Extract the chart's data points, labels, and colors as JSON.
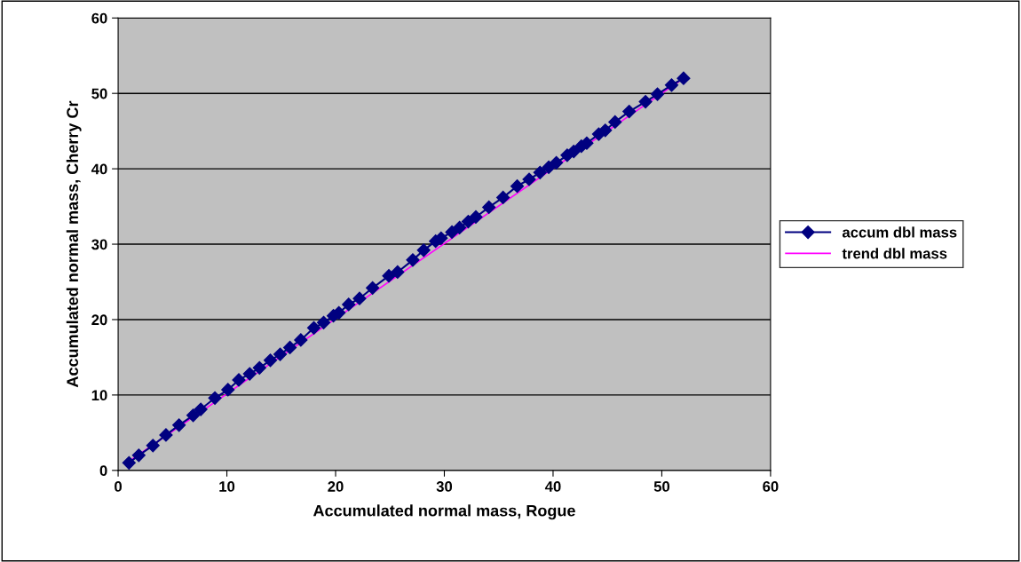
{
  "chart_data": {
    "type": "line",
    "xlabel": "Accumulated normal mass, Rogue",
    "ylabel": "Accumulated normal mass, Cherry Cr",
    "xlim": [
      0,
      60
    ],
    "ylim": [
      0,
      60
    ],
    "xticks": [
      0,
      10,
      20,
      30,
      40,
      50,
      60
    ],
    "yticks": [
      0,
      10,
      20,
      30,
      40,
      50,
      60
    ],
    "grid": "y",
    "legend": "right",
    "series": [
      {
        "name": "accum dbl mass",
        "color": "#000080",
        "marker": "diamond",
        "x": [
          1,
          1.9,
          3.2,
          4.4,
          5.6,
          6.9,
          7.6,
          8.9,
          10.1,
          11.1,
          12.1,
          13,
          14,
          14.9,
          15.8,
          16.8,
          18,
          18.9,
          19.8,
          20.3,
          21.2,
          22.2,
          23.4,
          24.9,
          25.7,
          27.1,
          28.1,
          29.2,
          29.7,
          30.7,
          31.4,
          32.2,
          32.9,
          34.1,
          35.4,
          36.7,
          37.8,
          38.8,
          39.6,
          40.3,
          41.3,
          41.9,
          42.6,
          43.1,
          44.2,
          44.8,
          45.7,
          47,
          48.5,
          49.6,
          50.9,
          52
        ],
        "values": [
          1,
          2,
          3.3,
          4.7,
          6,
          7.3,
          8.1,
          9.6,
          10.7,
          12,
          12.8,
          13.6,
          14.6,
          15.4,
          16.3,
          17.3,
          18.9,
          19.6,
          20.5,
          20.9,
          22,
          22.8,
          24.2,
          25.8,
          26.3,
          27.9,
          29.2,
          30.4,
          30.8,
          31.6,
          32.2,
          33,
          33.6,
          34.9,
          36.2,
          37.7,
          38.6,
          39.5,
          40.2,
          40.8,
          41.8,
          42.3,
          43,
          43.4,
          44.6,
          45.1,
          46.2,
          47.6,
          48.9,
          49.9,
          51.1,
          52
        ]
      },
      {
        "name": "trend dbl mass",
        "color": "#ff00ff",
        "marker": "none",
        "x": [
          1,
          52
        ],
        "values": [
          1.2,
          52
        ]
      }
    ]
  }
}
